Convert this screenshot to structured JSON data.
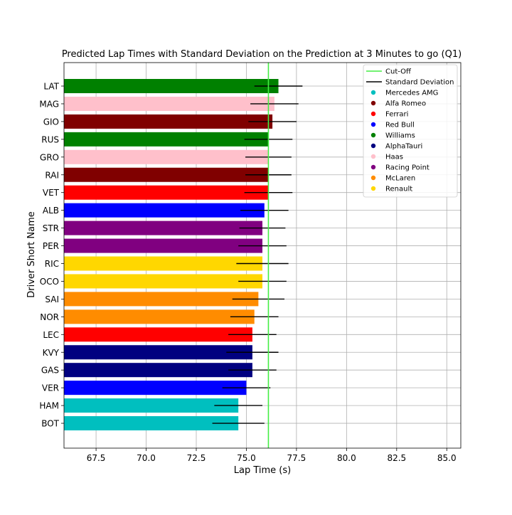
{
  "chart_data": {
    "type": "bar",
    "orientation": "horizontal",
    "title": "Predicted Lap Times with Standard Deviation on the Prediction at 3 Minutes to go (Q1)",
    "xlabel": "Lap Time (s)",
    "ylabel": "Driver Short Name",
    "xlim": [
      65.9,
      85.7
    ],
    "x_ticks": [
      "67.5",
      "70.0",
      "72.5",
      "75.0",
      "77.5",
      "80.0",
      "82.5",
      "85.0"
    ],
    "grid": true,
    "legend_position": "top-right",
    "cutoff": 76.1,
    "drivers": [
      {
        "name": "LAT",
        "team": "Williams",
        "value": 76.6,
        "std": 1.2
      },
      {
        "name": "MAG",
        "team": "Haas",
        "value": 76.4,
        "std": 1.2
      },
      {
        "name": "GIO",
        "team": "Alfa Romeo",
        "value": 76.3,
        "std": 1.2
      },
      {
        "name": "RUS",
        "team": "Williams",
        "value": 76.1,
        "std": 1.2
      },
      {
        "name": "GRO",
        "team": "Haas",
        "value": 76.1,
        "std": 1.15
      },
      {
        "name": "RAI",
        "team": "Alfa Romeo",
        "value": 76.1,
        "std": 1.15
      },
      {
        "name": "VET",
        "team": "Ferrari",
        "value": 76.1,
        "std": 1.2
      },
      {
        "name": "ALB",
        "team": "Red Bull",
        "value": 75.9,
        "std": 1.2
      },
      {
        "name": "STR",
        "team": "Racing Point",
        "value": 75.8,
        "std": 1.15
      },
      {
        "name": "PER",
        "team": "Racing Point",
        "value": 75.8,
        "std": 1.2
      },
      {
        "name": "RIC",
        "team": "Renault",
        "value": 75.8,
        "std": 1.3
      },
      {
        "name": "OCO",
        "team": "Renault",
        "value": 75.8,
        "std": 1.2
      },
      {
        "name": "SAI",
        "team": "McLaren",
        "value": 75.6,
        "std": 1.3
      },
      {
        "name": "NOR",
        "team": "McLaren",
        "value": 75.4,
        "std": 1.2
      },
      {
        "name": "LEC",
        "team": "Ferrari",
        "value": 75.3,
        "std": 1.2
      },
      {
        "name": "KVY",
        "team": "AlphaTauri",
        "value": 75.3,
        "std": 1.3
      },
      {
        "name": "GAS",
        "team": "AlphaTauri",
        "value": 75.3,
        "std": 1.2
      },
      {
        "name": "VER",
        "team": "Red Bull",
        "value": 75.0,
        "std": 1.2
      },
      {
        "name": "HAM",
        "team": "Mercedes AMG",
        "value": 74.6,
        "std": 1.2
      },
      {
        "name": "BOT",
        "team": "Mercedes AMG",
        "value": 74.6,
        "std": 1.3
      }
    ],
    "legend": [
      {
        "label": "Cut-Off",
        "kind": "line",
        "color": "#44ee44"
      },
      {
        "label": "Standard Deviation",
        "kind": "line",
        "color": "#000000"
      },
      {
        "label": "Mercedes AMG",
        "kind": "dot",
        "color": "#00bfbf"
      },
      {
        "label": "Alfa Romeo",
        "kind": "dot",
        "color": "#800000"
      },
      {
        "label": "Ferrari",
        "kind": "dot",
        "color": "#ff0000"
      },
      {
        "label": "Red Bull",
        "kind": "dot",
        "color": "#0000ff"
      },
      {
        "label": "Williams",
        "kind": "dot",
        "color": "#008000"
      },
      {
        "label": "AlphaTauri",
        "kind": "dot",
        "color": "#000080"
      },
      {
        "label": "Haas",
        "kind": "dot",
        "color": "#ffc0cb"
      },
      {
        "label": "Racing Point",
        "kind": "dot",
        "color": "#800080"
      },
      {
        "label": "McLaren",
        "kind": "dot",
        "color": "#ff8c00"
      },
      {
        "label": "Renault",
        "kind": "dot",
        "color": "#ffd700"
      }
    ]
  }
}
